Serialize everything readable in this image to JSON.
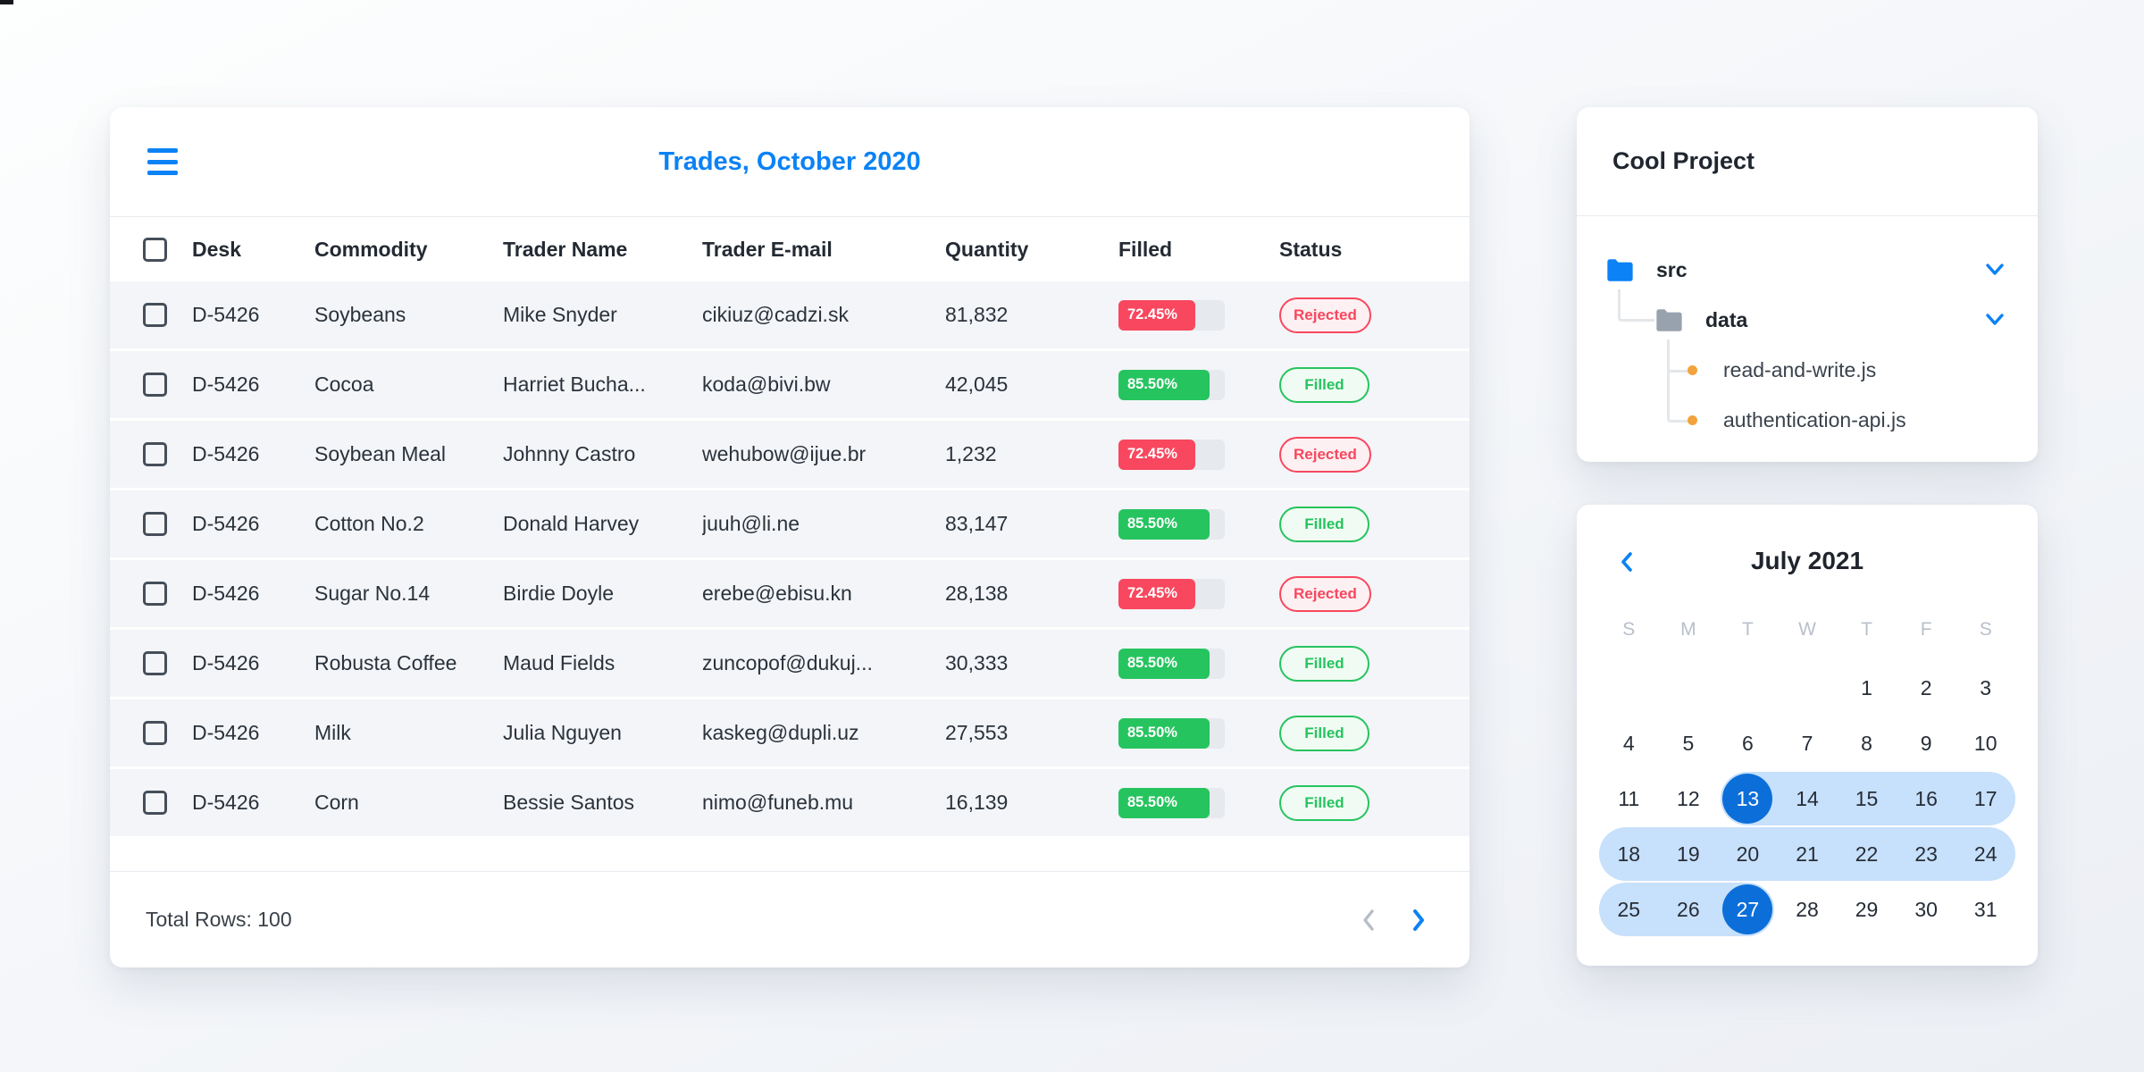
{
  "colors": {
    "accent_blue": "#0b82f5",
    "selected_day_blue": "#0c6fd9",
    "range_blue": "#c7e0fb",
    "red": "#f8475e",
    "red_pill_bg": "#fdf0f2",
    "green": "#26c45f",
    "green_pill_bg": "#f0fbf3",
    "progress_track": "#e6e9ed",
    "row_bg": "#f3f5f8",
    "folder_blue": "#0b82f5",
    "folder_grey": "#98a2ae",
    "bullet_orange": "#f2a33c",
    "disabled_grey": "#b6bdc7"
  },
  "trades_card": {
    "title": "Trades, October 2020",
    "columns": [
      "Desk",
      "Commodity",
      "Trader Name",
      "Trader E-mail",
      "Quantity",
      "Filled",
      "Status"
    ],
    "rows": [
      {
        "desk": "D-5426",
        "commodity": "Soybeans",
        "trader": "Mike Snyder",
        "email": "cikiuz@cadzi.sk",
        "quantity": "81,832",
        "filled_label": "72.45%",
        "filled_pct": 72.45,
        "status": "Rejected"
      },
      {
        "desk": "D-5426",
        "commodity": "Cocoa",
        "trader": "Harriet Bucha...",
        "email": "koda@bivi.bw",
        "quantity": "42,045",
        "filled_label": "85.50%",
        "filled_pct": 85.5,
        "status": "Filled"
      },
      {
        "desk": "D-5426",
        "commodity": "Soybean Meal",
        "trader": "Johnny Castro",
        "email": "wehubow@ijue.br",
        "quantity": "1,232",
        "filled_label": "72.45%",
        "filled_pct": 72.45,
        "status": "Rejected"
      },
      {
        "desk": "D-5426",
        "commodity": "Cotton No.2",
        "trader": "Donald Harvey",
        "email": "juuh@li.ne",
        "quantity": "83,147",
        "filled_label": "85.50%",
        "filled_pct": 85.5,
        "status": "Filled"
      },
      {
        "desk": "D-5426",
        "commodity": "Sugar No.14",
        "trader": "Birdie Doyle",
        "email": "erebe@ebisu.kn",
        "quantity": "28,138",
        "filled_label": "72.45%",
        "filled_pct": 72.45,
        "status": "Rejected"
      },
      {
        "desk": "D-5426",
        "commodity": "Robusta Coffee",
        "trader": "Maud Fields",
        "email": "zuncopof@dukuj...",
        "quantity": "30,333",
        "filled_label": "85.50%",
        "filled_pct": 85.5,
        "status": "Filled"
      },
      {
        "desk": "D-5426",
        "commodity": "Milk",
        "trader": "Julia Nguyen",
        "email": "kaskeg@dupli.uz",
        "quantity": "27,553",
        "filled_label": "85.50%",
        "filled_pct": 85.5,
        "status": "Filled"
      },
      {
        "desk": "D-5426",
        "commodity": "Corn",
        "trader": "Bessie Santos",
        "email": "nimo@funeb.mu",
        "quantity": "16,139",
        "filled_label": "85.50%",
        "filled_pct": 85.5,
        "status": "Filled"
      }
    ],
    "footer": {
      "total_label": "Total Rows: 100"
    }
  },
  "project_card": {
    "title": "Cool Project",
    "tree": {
      "root_folder": {
        "label": "src",
        "expanded": true
      },
      "sub_folder": {
        "label": "data",
        "expanded": true
      },
      "files": [
        {
          "label": "read-and-write.js"
        },
        {
          "label": "authentication-api.js"
        }
      ]
    }
  },
  "calendar_card": {
    "title": "July 2021",
    "day_headers": [
      "S",
      "M",
      "T",
      "W",
      "T",
      "F",
      "S"
    ],
    "weeks": [
      [
        "",
        "",
        "",
        "",
        "1",
        "2",
        "3"
      ],
      [
        "4",
        "5",
        "6",
        "7",
        "8",
        "9",
        "10"
      ],
      [
        "11",
        "12",
        "13",
        "14",
        "15",
        "16",
        "17"
      ],
      [
        "18",
        "19",
        "20",
        "21",
        "22",
        "23",
        "24"
      ],
      [
        "25",
        "26",
        "27",
        "28",
        "29",
        "30",
        "31"
      ]
    ],
    "selected_range_start": 13,
    "selected_range_end": 27
  }
}
